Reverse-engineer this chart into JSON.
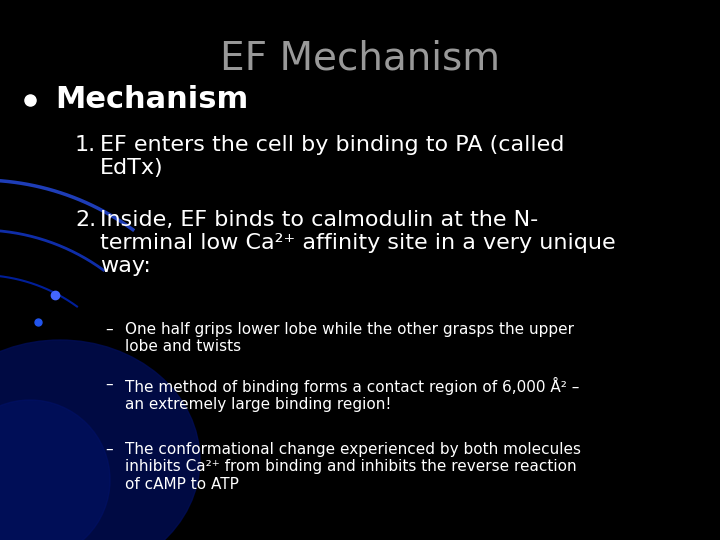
{
  "title": "EF Mechanism",
  "title_color": "#999999",
  "title_fontsize": 28,
  "background_color": "#000000",
  "bullet_color": "#ffffff",
  "bullet_label": "Mechanism",
  "bullet_fontsize": 22,
  "item1_num": "1.",
  "item1_text": "EF enters the cell by binding to PA (called\nEdTx)",
  "item2_num": "2.",
  "item2_text": "Inside, EF binds to calmodulin at the N-\nterminal low Ca²⁺ affinity site in a very unique\nway:",
  "item_fontsize": 16,
  "subitems": [
    "One half grips lower lobe while the other grasps the upper\nlobe and twists",
    "The method of binding forms a contact region of 6,000 Å² –\nan extremely large binding region!",
    "The conformational change experienced by both molecules\ninhibits Ca²⁺ from binding and inhibits the reverse reaction\nof cAMP to ATP"
  ],
  "subitem_fontsize": 11,
  "text_color": "#ffffff",
  "arc_colors": [
    "#2244cc",
    "#1133bb",
    "#0022aa"
  ],
  "dot_color": "#4466ff",
  "glow_color": "#000d55"
}
